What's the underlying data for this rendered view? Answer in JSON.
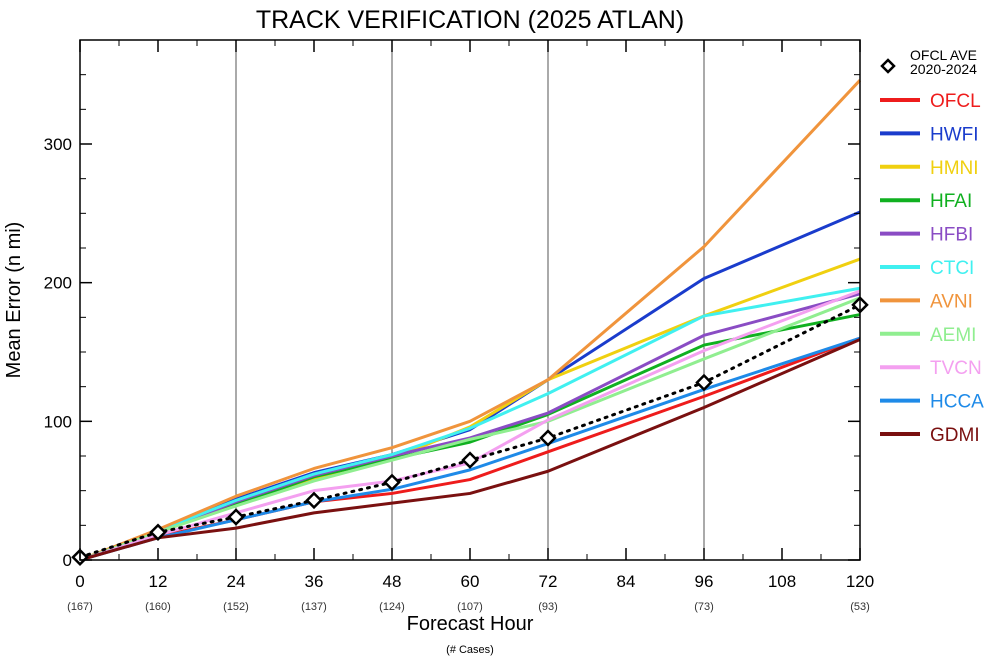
{
  "chart_data": {
    "type": "line",
    "title": "TRACK VERIFICATION (2025 ATLAN)",
    "xlabel": "Forecast Hour",
    "xlabel_sub": "(# Cases)",
    "ylabel": "Mean Error (n mi)",
    "x": [
      0,
      12,
      24,
      36,
      48,
      60,
      72,
      96,
      120
    ],
    "x_ticks": [
      0,
      12,
      24,
      36,
      48,
      60,
      72,
      84,
      96,
      108,
      120
    ],
    "x_tick_labels": [
      "0",
      "12",
      "24",
      "36",
      "48",
      "60",
      "72",
      "84",
      "96",
      "108",
      "120"
    ],
    "cases": [
      {
        "x": 0,
        "label": "(167)"
      },
      {
        "x": 12,
        "label": "(160)"
      },
      {
        "x": 24,
        "label": "(152)"
      },
      {
        "x": 36,
        "label": "(137)"
      },
      {
        "x": 48,
        "label": "(124)"
      },
      {
        "x": 60,
        "label": "(107)"
      },
      {
        "x": 72,
        "label": "(93)"
      },
      {
        "x": 96,
        "label": "(73)"
      },
      {
        "x": 120,
        "label": "(53)"
      }
    ],
    "xlim": [
      0,
      120
    ],
    "ylim": [
      0,
      375
    ],
    "y_ticks": [
      0,
      100,
      200,
      300
    ],
    "y_tick_labels": [
      "0",
      "100",
      "200",
      "300"
    ],
    "vertical_gridlines": [
      24,
      48,
      72,
      96
    ],
    "legend_position": "right",
    "reference": {
      "label_line1": "OFCL AVE",
      "label_line2": "2020-2024",
      "marker": "diamond",
      "values": [
        2,
        20,
        31,
        43,
        56,
        72,
        88,
        128,
        184
      ]
    },
    "series": [
      {
        "name": "OFCL",
        "color": "#ee1c1c",
        "values": [
          0,
          17,
          29,
          42,
          48,
          58,
          78,
          118,
          160
        ]
      },
      {
        "name": "HWFI",
        "color": "#1a3ccc",
        "values": [
          0,
          20,
          44,
          63,
          76,
          94,
          130,
          203,
          251
        ]
      },
      {
        "name": "HMNI",
        "color": "#f0d010",
        "values": [
          0,
          21,
          40,
          58,
          73,
          96,
          130,
          176,
          217
        ]
      },
      {
        "name": "HFAI",
        "color": "#10b020",
        "values": [
          0,
          20,
          40,
          60,
          73,
          85,
          105,
          155,
          177
        ]
      },
      {
        "name": "HFBI",
        "color": "#8a4cc4",
        "values": [
          0,
          20,
          42,
          61,
          75,
          88,
          106,
          162,
          192
        ]
      },
      {
        "name": "CTCI",
        "color": "#40f0f0",
        "values": [
          0,
          21,
          43,
          62,
          76,
          95,
          120,
          176,
          196
        ]
      },
      {
        "name": "AVNI",
        "color": "#f0943c",
        "values": [
          0,
          22,
          46,
          66,
          81,
          100,
          130,
          226,
          346
        ]
      },
      {
        "name": "AEMI",
        "color": "#90ee90",
        "values": [
          0,
          20,
          39,
          57,
          72,
          87,
          100,
          145,
          189
        ]
      },
      {
        "name": "TVCN",
        "color": "#f4a0f0",
        "values": [
          0,
          18,
          34,
          50,
          57,
          70,
          101,
          151,
          194
        ]
      },
      {
        "name": "HCCA",
        "color": "#1e8ae8",
        "values": [
          0,
          16,
          29,
          42,
          51,
          65,
          84,
          123,
          160
        ]
      },
      {
        "name": "GDMI",
        "color": "#7a1010",
        "values": [
          0,
          16,
          23,
          34,
          41,
          48,
          64,
          110,
          159
        ]
      }
    ]
  }
}
